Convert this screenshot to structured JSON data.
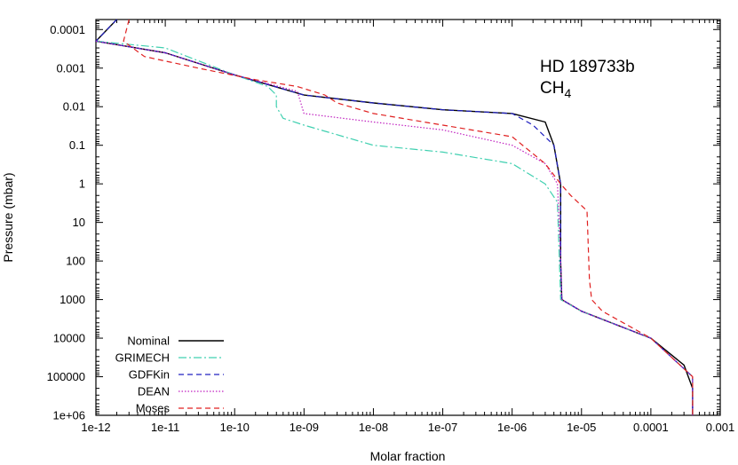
{
  "chart_data": {
    "type": "line",
    "title": "",
    "xlabel": "Molar fraction",
    "ylabel": "Pressure (mbar)",
    "xscale": "log",
    "yscale": "log",
    "xlim": [
      1e-12,
      0.001
    ],
    "ylim": [
      5e-05,
      1000000
    ],
    "y_inverted": true,
    "x_tick_labels": [
      "1e-12",
      "1e-11",
      "1e-10",
      "1e-09",
      "1e-08",
      "1e-07",
      "1e-06",
      "1e-05",
      "0.0001",
      "0.001"
    ],
    "y_tick_labels": [
      "0.0001",
      "0.001",
      "0.01",
      "0.1",
      "1",
      "10",
      "100",
      "1000",
      "10000",
      "100000",
      "1e+06"
    ],
    "annotations": [
      "HD 189733b",
      "CH",
      "4"
    ],
    "legend_position": "bottom-left",
    "grid": false,
    "series": [
      {
        "name": "Nominal",
        "color": "#000000",
        "dash": "solid",
        "points": [
          [
            2e-12,
            5e-05
          ],
          [
            1e-12,
            0.0002
          ],
          [
            1e-11,
            0.0004
          ],
          [
            1e-10,
            0.0015
          ],
          [
            1e-09,
            0.005
          ],
          [
            1e-08,
            0.008
          ],
          [
            1e-07,
            0.012
          ],
          [
            1e-06,
            0.015
          ],
          [
            3e-06,
            0.025
          ],
          [
            4e-06,
            0.1
          ],
          [
            5e-06,
            1
          ],
          [
            5e-06,
            100
          ],
          [
            5.2e-06,
            1000
          ],
          [
            1e-05,
            2000
          ],
          [
            0.0001,
            10000
          ],
          [
            0.0003,
            50000
          ],
          [
            0.0004,
            200000
          ],
          [
            0.0004,
            1000000
          ]
        ]
      },
      {
        "name": "GRIMECH",
        "color": "#40d0b0",
        "dash": "dash-dot",
        "points": [
          [
            1e-12,
            0.0002
          ],
          [
            1e-11,
            0.0003
          ],
          [
            1e-10,
            0.0015
          ],
          [
            3e-10,
            0.003
          ],
          [
            4e-10,
            0.005
          ],
          [
            4e-10,
            0.01
          ],
          [
            5e-10,
            0.02
          ],
          [
            1e-09,
            0.03
          ],
          [
            1e-08,
            0.1
          ],
          [
            1e-07,
            0.15
          ],
          [
            1e-06,
            0.3
          ],
          [
            3e-06,
            1
          ],
          [
            4.5e-06,
            3
          ],
          [
            4.8e-06,
            100
          ],
          [
            5e-06,
            1000
          ],
          [
            1e-05,
            2000
          ],
          [
            0.0001,
            10000
          ],
          [
            0.0004,
            100000
          ],
          [
            0.0004,
            1000000
          ]
        ]
      },
      {
        "name": "GDFKin",
        "color": "#2020c0",
        "dash": "dashed",
        "points": [
          [
            2e-12,
            5e-05
          ],
          [
            1e-12,
            0.0002
          ],
          [
            1e-11,
            0.0004
          ],
          [
            1e-10,
            0.0015
          ],
          [
            1e-09,
            0.005
          ],
          [
            1e-08,
            0.008
          ],
          [
            1e-07,
            0.012
          ],
          [
            1e-06,
            0.015
          ],
          [
            2e-06,
            0.03
          ],
          [
            4e-06,
            0.1
          ],
          [
            5e-06,
            1
          ],
          [
            5e-06,
            100
          ],
          [
            5.2e-06,
            1000
          ],
          [
            1e-05,
            2000
          ],
          [
            0.0001,
            10000
          ],
          [
            0.0004,
            100000
          ],
          [
            0.0004,
            1000000
          ]
        ]
      },
      {
        "name": "DEAN",
        "color": "#c020c0",
        "dash": "dotted",
        "points": [
          [
            1e-12,
            0.0002
          ],
          [
            1e-11,
            0.0004
          ],
          [
            1e-10,
            0.0015
          ],
          [
            8e-10,
            0.004
          ],
          [
            1e-09,
            0.015
          ],
          [
            1e-08,
            0.025
          ],
          [
            1e-07,
            0.04
          ],
          [
            1e-06,
            0.1
          ],
          [
            3e-06,
            0.3
          ],
          [
            4.5e-06,
            1
          ],
          [
            5e-06,
            100
          ],
          [
            5.2e-06,
            1000
          ],
          [
            1e-05,
            2000
          ],
          [
            0.0001,
            10000
          ],
          [
            0.0004,
            100000
          ],
          [
            0.0004,
            1000000
          ]
        ]
      },
      {
        "name": "Moses",
        "color": "#e02020",
        "dash": "dashed",
        "points": [
          [
            3e-12,
            5e-05
          ],
          [
            2.5e-12,
            0.0002
          ],
          [
            5e-12,
            0.0005
          ],
          [
            3e-11,
            0.001
          ],
          [
            2e-10,
            0.002
          ],
          [
            8e-10,
            0.003
          ],
          [
            2e-09,
            0.005
          ],
          [
            3e-09,
            0.008
          ],
          [
            1e-08,
            0.015
          ],
          [
            1e-07,
            0.03
          ],
          [
            1e-06,
            0.06
          ],
          [
            3e-06,
            0.3
          ],
          [
            5e-06,
            1
          ],
          [
            7e-06,
            2
          ],
          [
            1.2e-05,
            5
          ],
          [
            1.3e-05,
            300
          ],
          [
            1.4e-05,
            1000
          ],
          [
            2e-05,
            2000
          ],
          [
            0.0001,
            10000
          ],
          [
            0.0004,
            100000
          ],
          [
            0.0004,
            1000000
          ]
        ]
      }
    ]
  }
}
